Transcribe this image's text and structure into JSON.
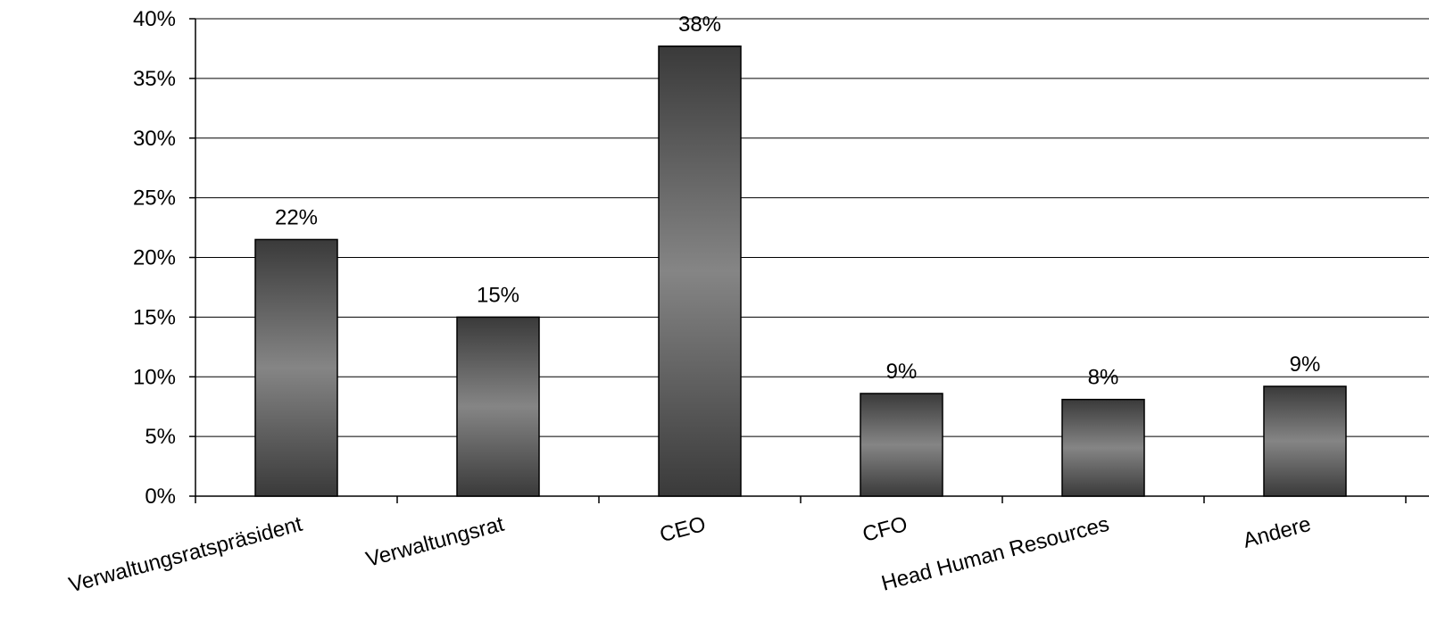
{
  "chart_data": {
    "type": "bar",
    "categories": [
      "Verwaltungsratspräsident",
      "Verwaltungsrat",
      "CEO",
      "CFO",
      "Head Human Resources",
      "Andere"
    ],
    "values": [
      21.5,
      15.0,
      37.7,
      8.6,
      8.1,
      9.2
    ],
    "data_labels": [
      "22%",
      "15%",
      "38%",
      "9%",
      "8%",
      "9%"
    ],
    "y_ticks": [
      0,
      5,
      10,
      15,
      20,
      25,
      30,
      35,
      40
    ],
    "y_tick_labels": [
      "0%",
      "5%",
      "10%",
      "15%",
      "20%",
      "25%",
      "30%",
      "35%",
      "40%"
    ],
    "ylim": [
      0,
      40
    ],
    "grid": true,
    "legend": "none",
    "title": "",
    "xlabel": "",
    "ylabel": "",
    "colors": {
      "bar_dark": "#3a3a3a",
      "bar_light": "#858585",
      "bar_outline": "#000000",
      "grid": "#000000",
      "axis": "#000000"
    }
  }
}
